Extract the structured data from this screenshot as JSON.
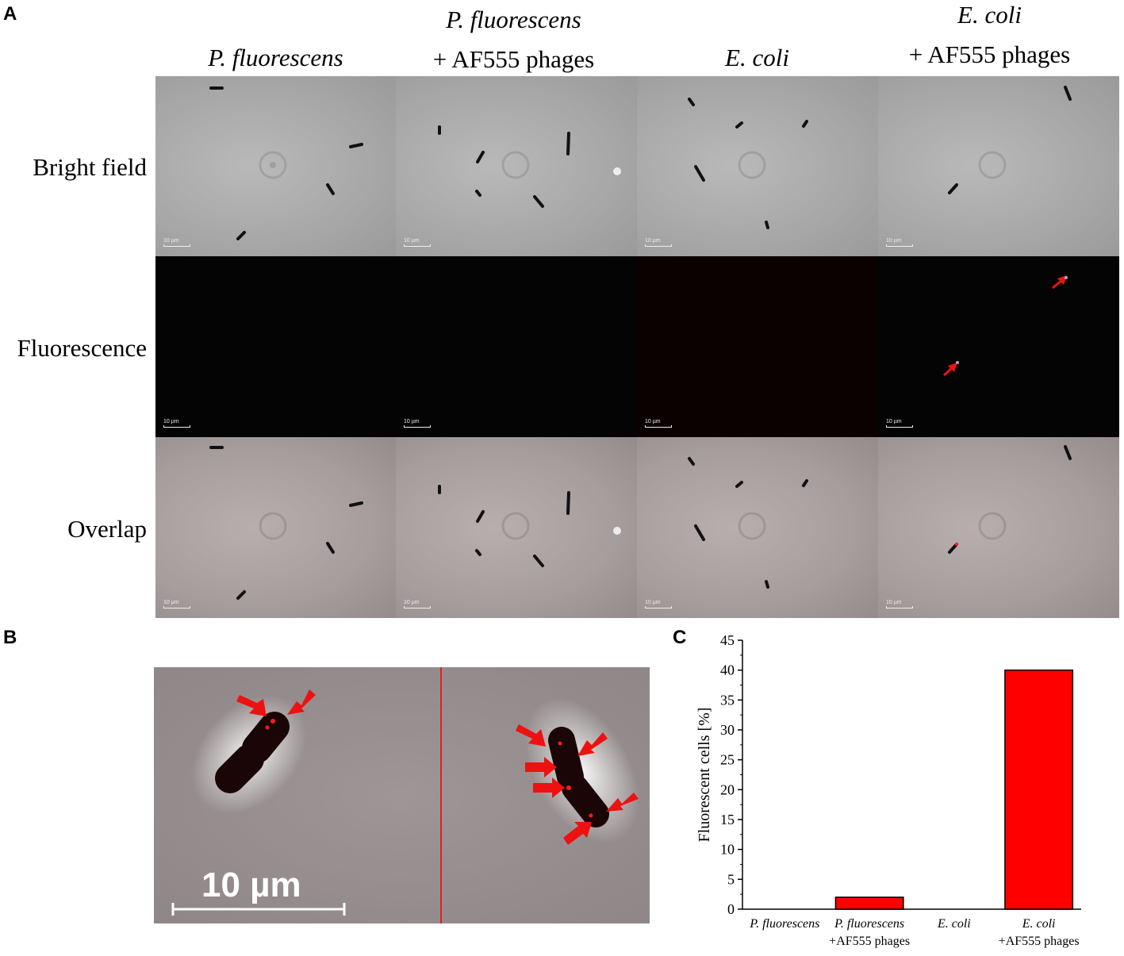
{
  "panels": {
    "a": "A",
    "b": "B",
    "c": "C"
  },
  "columns": [
    {
      "species": "P. fluorescens",
      "suffix": ""
    },
    {
      "species": "P. fluorescens",
      "suffix": "+ AF555 phages"
    },
    {
      "species": "E. coli",
      "suffix": ""
    },
    {
      "species": "E. coli",
      "suffix": "+ AF555 phages"
    }
  ],
  "rows": [
    "Bright field",
    "Fluorescence",
    "Overlap"
  ],
  "scale_small": "10 µm",
  "scale_large": "10 µm",
  "colors": {
    "accent": "#ff0000",
    "arrow": "#ee1111"
  },
  "chart_data": {
    "type": "bar",
    "categories": [
      [
        "P. fluorescens",
        ""
      ],
      [
        "P. fluorescens",
        "+AF555 phages"
      ],
      [
        "E. coli",
        ""
      ],
      [
        "E. coli",
        "+AF555 phages"
      ]
    ],
    "values": [
      0,
      2,
      0,
      40
    ],
    "ylabel": "Fluorescent cells [%]",
    "ylim": [
      0,
      45
    ],
    "yticks": [
      0,
      5,
      10,
      15,
      20,
      25,
      30,
      35,
      40,
      45
    ],
    "bar_color": "#ff0000",
    "grid": false
  }
}
